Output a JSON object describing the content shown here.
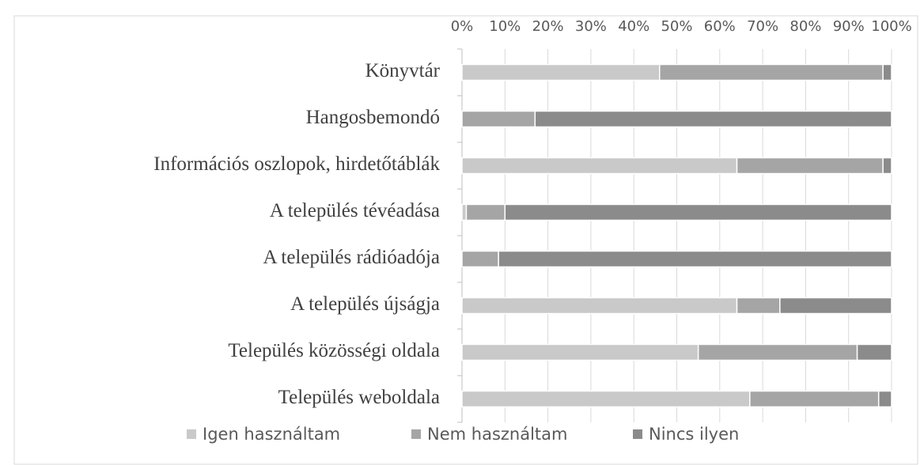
{
  "chart_data": {
    "type": "stacked_barh",
    "categories": [
      "Könyvtár",
      "Hangosbemondó",
      "Információs oszlopok, hirdetőtáblák",
      "A település tévéadása",
      "A település rádióadója",
      "A település újságja",
      "Település közösségi oldala",
      "Település weboldala"
    ],
    "series": [
      {
        "name": "Igen használtam",
        "color": "#c9c9c9",
        "values": [
          46,
          0,
          64,
          1,
          0,
          64,
          55,
          67
        ]
      },
      {
        "name": "Nem használtam",
        "color": "#a5a5a5",
        "values": [
          52,
          17,
          34,
          9,
          8.5,
          10,
          37,
          30
        ]
      },
      {
        "name": "Nincs ilyen",
        "color": "#8b8b8b",
        "values": [
          2,
          83,
          2,
          90,
          91.5,
          26,
          8,
          3
        ]
      }
    ],
    "xlim": [
      0,
      100
    ],
    "xticks": [
      {
        "value": 0,
        "label": "0%"
      },
      {
        "value": 10,
        "label": "10%"
      },
      {
        "value": 20,
        "label": "20%"
      },
      {
        "value": 30,
        "label": "30%"
      },
      {
        "value": 40,
        "label": "40%"
      },
      {
        "value": 50,
        "label": "50%"
      },
      {
        "value": 60,
        "label": "60%"
      },
      {
        "value": 70,
        "label": "70%"
      },
      {
        "value": 80,
        "label": "80%"
      },
      {
        "value": 90,
        "label": "90%"
      },
      {
        "value": 100,
        "label": "100%"
      }
    ],
    "grid": true,
    "legend": "bottom"
  }
}
